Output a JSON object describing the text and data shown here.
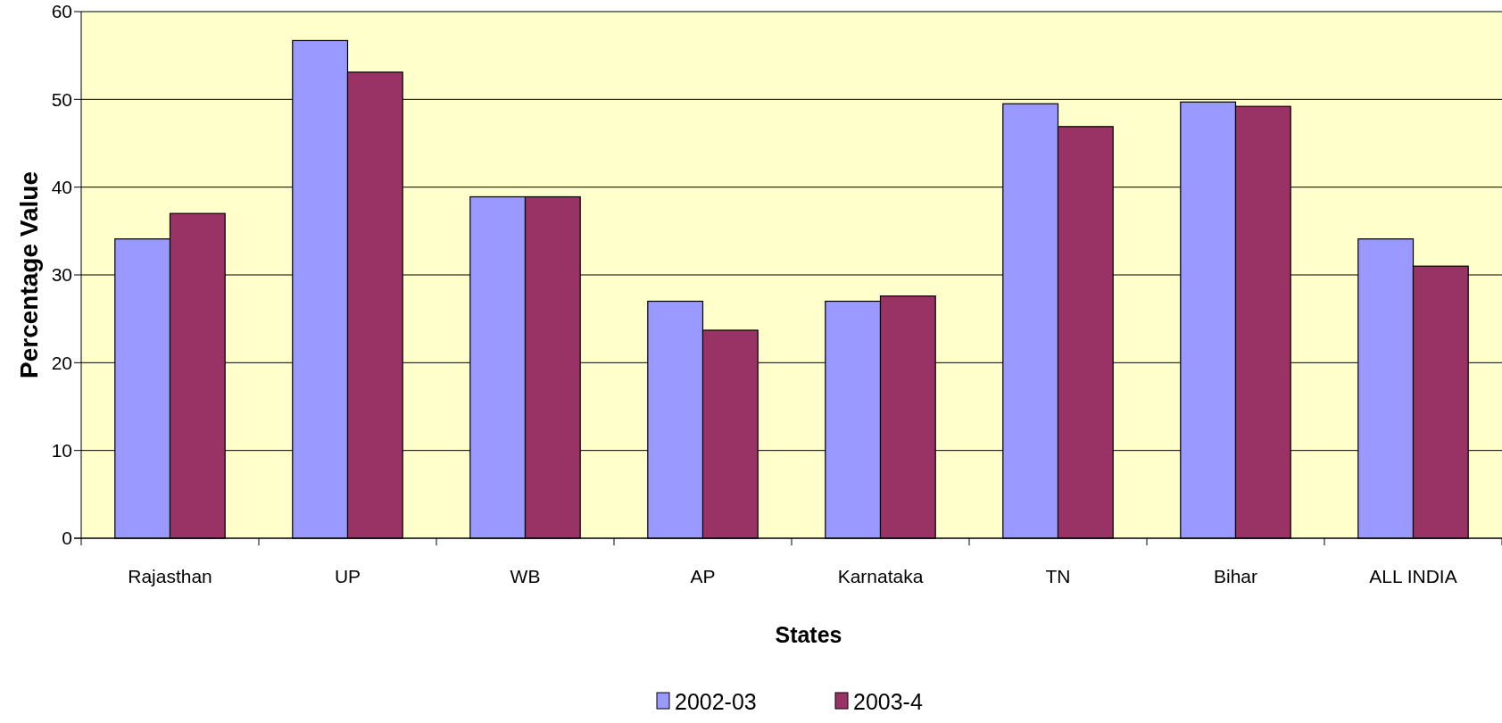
{
  "chart_data": {
    "type": "bar",
    "xlabel": "States",
    "ylabel": "Percentage Value",
    "categories": [
      "Rajasthan",
      "UP",
      "WB",
      "AP",
      "Karnataka",
      "TN",
      "Bihar",
      "ALL INDIA"
    ],
    "series": [
      {
        "name": "2002-03",
        "color": "#9999ff",
        "values": [
          34.1,
          56.7,
          38.9,
          27.0,
          27.0,
          49.5,
          49.7,
          34.1
        ]
      },
      {
        "name": "2003-4",
        "color": "#993366",
        "values": [
          37.0,
          53.1,
          38.9,
          23.7,
          27.6,
          46.9,
          49.2,
          31.0
        ]
      }
    ],
    "ylim": [
      0,
      60
    ],
    "yticks": [
      0,
      10,
      20,
      30,
      40,
      50,
      60
    ],
    "grid": "y",
    "legend": "bottom"
  }
}
